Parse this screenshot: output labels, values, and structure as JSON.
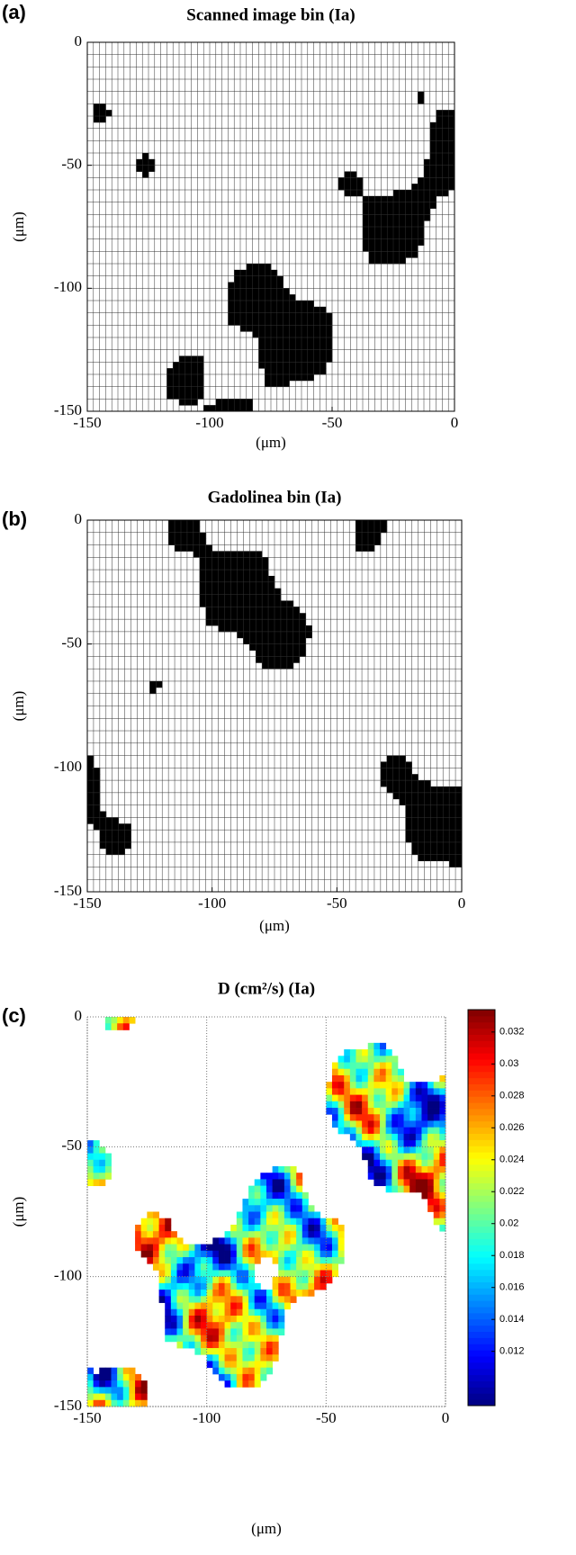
{
  "chart_data": [
    {
      "type": "heatmap",
      "panel_label": "(a)",
      "title": "Scanned image bin (Ia)",
      "xlabel": "(μm)",
      "ylabel": "(μm)",
      "xlim": [
        -150,
        0
      ],
      "ylim": [
        -150,
        0
      ],
      "xticks": [
        -150,
        -100,
        -50,
        0
      ],
      "yticks": [
        -150,
        -100,
        -50,
        0
      ],
      "colormap": "binary",
      "grid": false
    },
    {
      "type": "heatmap",
      "panel_label": "(b)",
      "title": "Gadolinea bin (Ia)",
      "xlabel": "(μm)",
      "ylabel": "(μm)",
      "xlim": [
        -150,
        0
      ],
      "ylim": [
        -150,
        0
      ],
      "xticks": [
        -150,
        -100,
        -50,
        0
      ],
      "yticks": [
        -150,
        -100,
        -50,
        0
      ],
      "colormap": "binary",
      "grid": false
    },
    {
      "type": "heatmap",
      "panel_label": "(c)",
      "title": "D (cm²/s) (Ia)",
      "xlabel": "(μm)",
      "ylabel": "(μm)",
      "xlim": [
        -150,
        0
      ],
      "ylim": [
        -150,
        0
      ],
      "xticks": [
        -150,
        -100,
        -50,
        0
      ],
      "yticks": [
        -150,
        -100,
        -50,
        0
      ],
      "colormap": "jet",
      "grid": true,
      "clim": [
        0.0086,
        0.0334
      ],
      "cticks": [
        0.012,
        0.014,
        0.016,
        0.018,
        0.02,
        0.022,
        0.024,
        0.026,
        0.028,
        0.03,
        0.032
      ]
    }
  ]
}
